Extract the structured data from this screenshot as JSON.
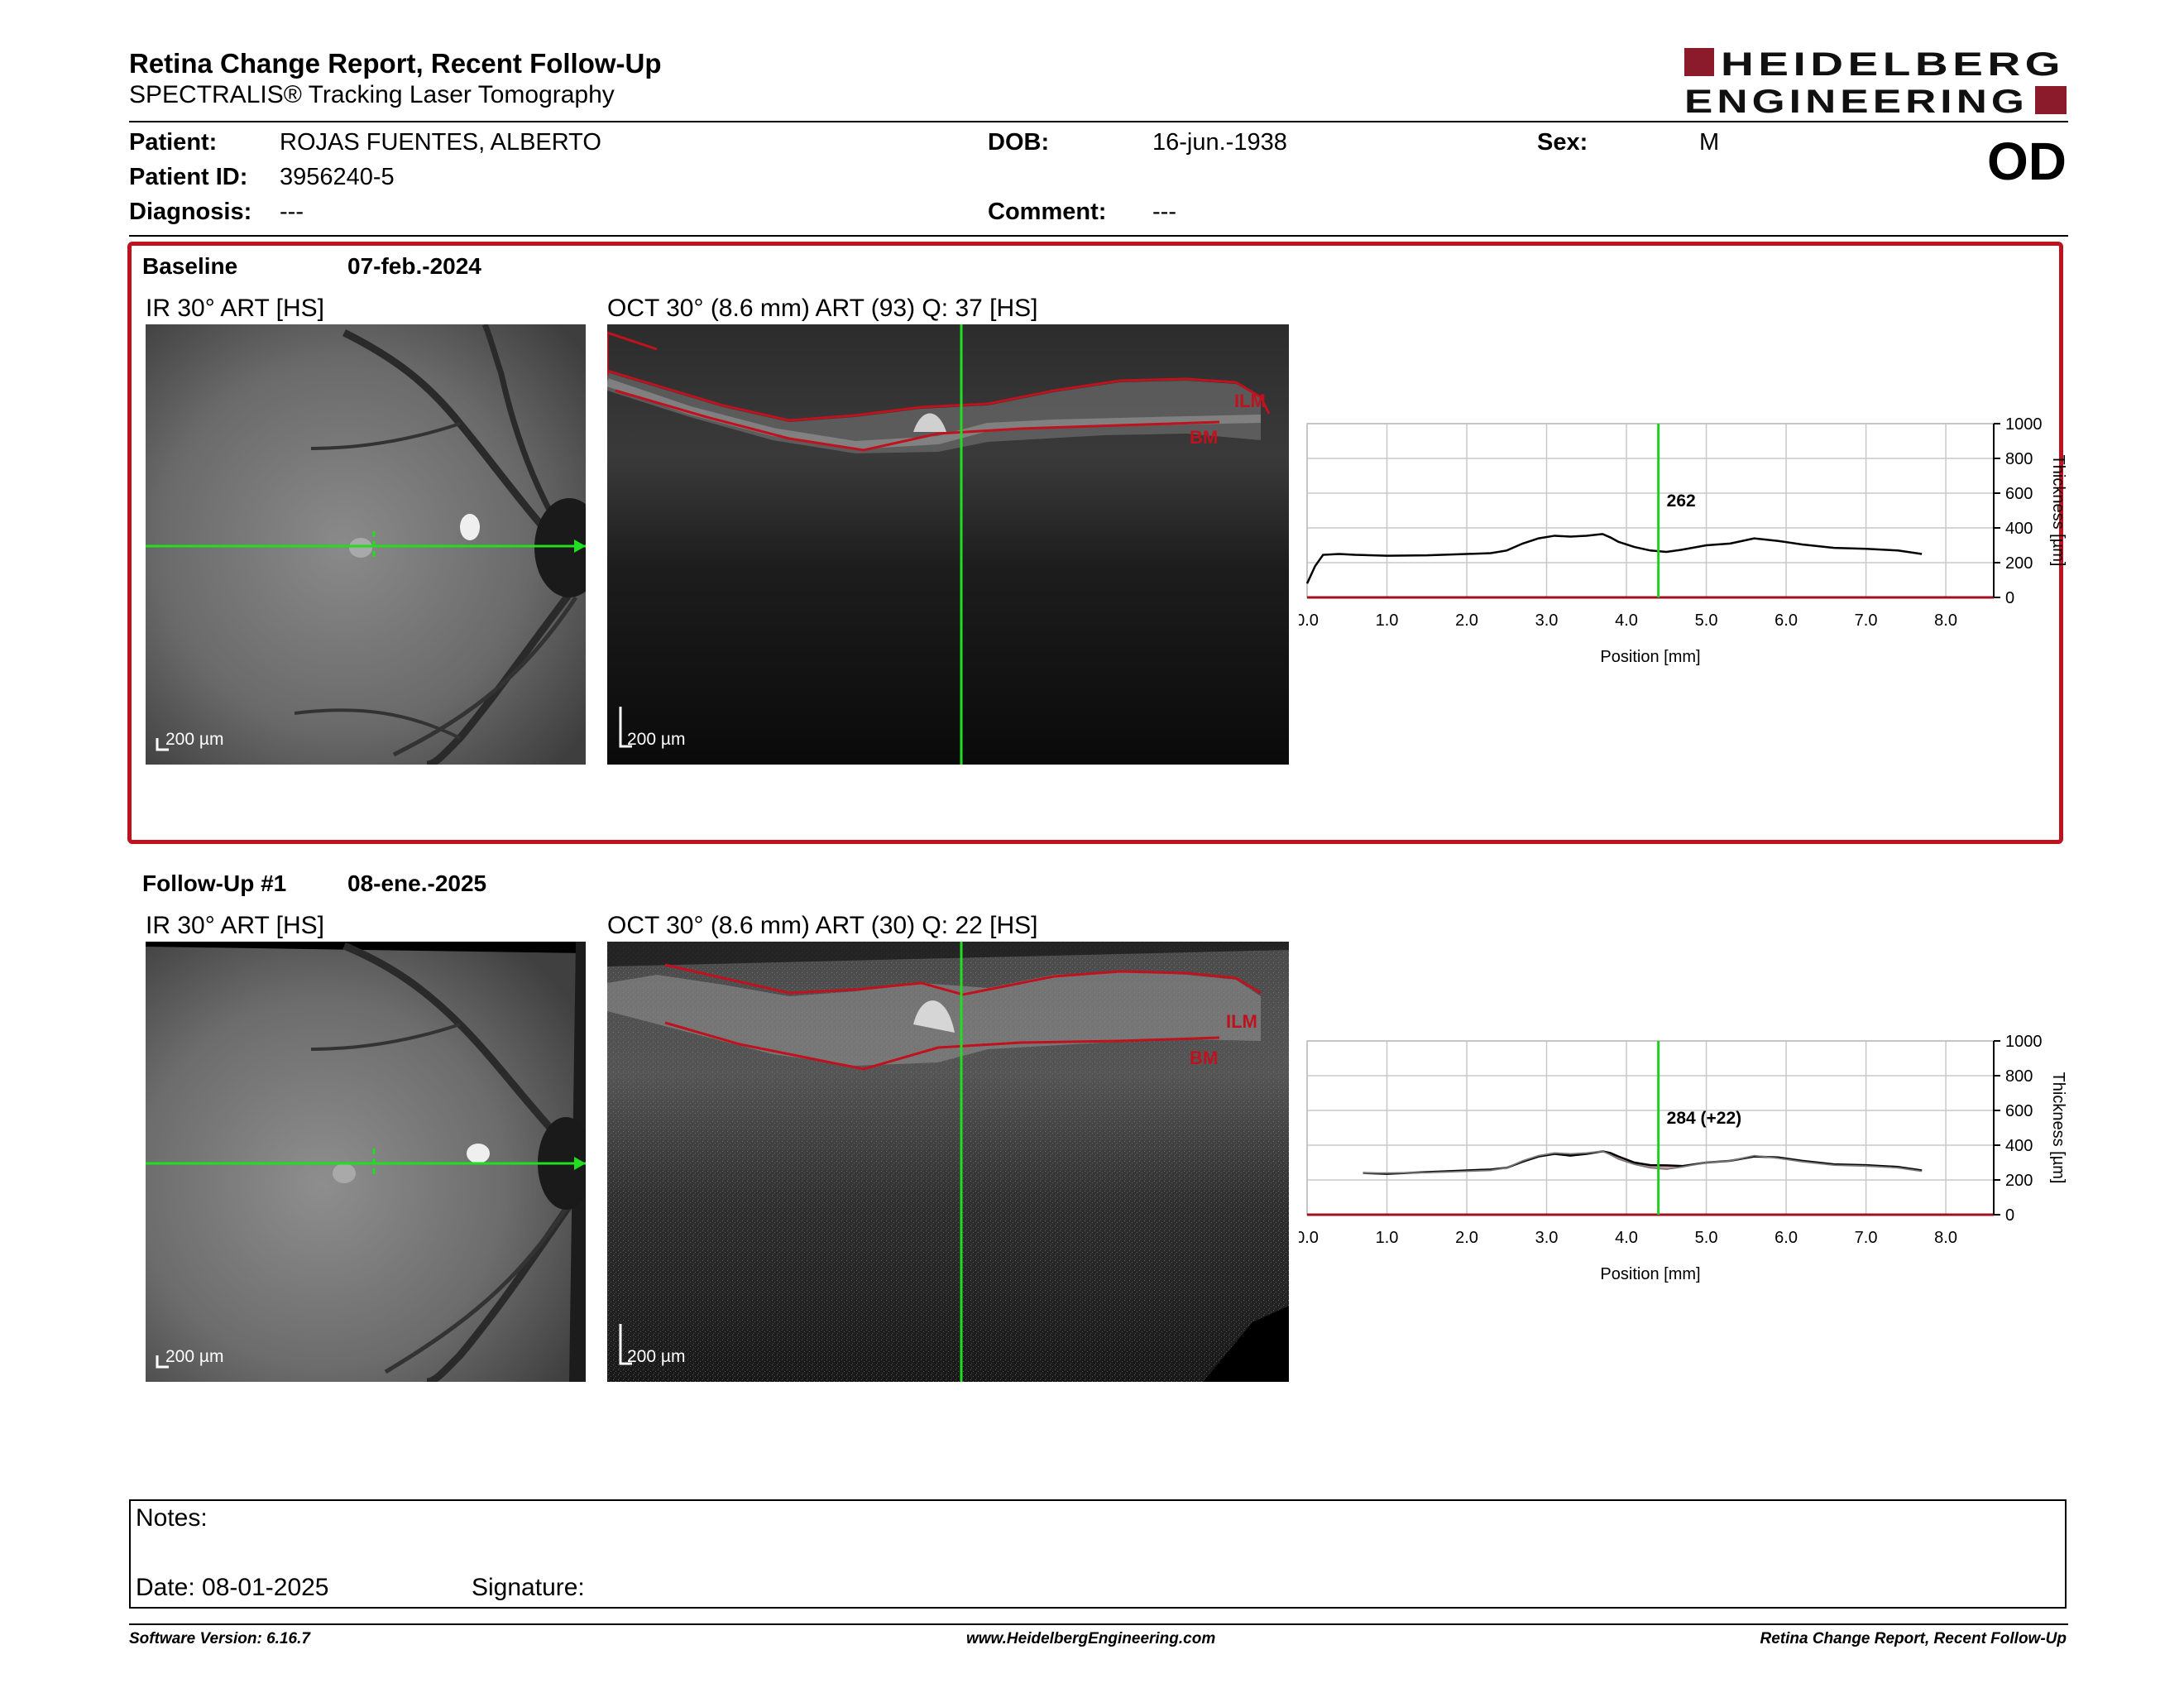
{
  "header": {
    "title": "Retina Change Report, Recent Follow-Up",
    "subtitle": "SPECTRALIS® Tracking Laser Tomography",
    "logo_line1": "HEIDELBERG",
    "logo_line2": "ENGINEERING",
    "brand_color": "#8b1a2b"
  },
  "patient": {
    "patient_label": "Patient:",
    "patient_value": "ROJAS FUENTES, ALBERTO",
    "id_label": "Patient ID:",
    "id_value": "3956240-5",
    "diagnosis_label": "Diagnosis:",
    "diagnosis_value": "---",
    "dob_label": "DOB:",
    "dob_value": "16-jun.-1938",
    "comment_label": "Comment:",
    "comment_value": "---",
    "sex_label": "Sex:",
    "sex_value": "M",
    "eye": "OD"
  },
  "baseline": {
    "label": "Baseline",
    "date": "07-feb.-2024",
    "ir_caption": "IR 30° ART [HS]",
    "oct_caption": "OCT 30° (8.6 mm) ART (93) Q: 37 [HS]",
    "scale_ir": "200 µm",
    "scale_oct": "200 µm",
    "ilm_label": "ILM",
    "bm_label": "BM",
    "cursor_value": "262"
  },
  "followup": {
    "label": "Follow-Up #1",
    "date": "08-ene.-2025",
    "ir_caption": "IR 30° ART [HS]",
    "oct_caption": "OCT 30° (8.6 mm) ART (30) Q: 22 [HS]",
    "scale_ir": "200 µm",
    "scale_oct": "200 µm",
    "ilm_label": "ILM",
    "bm_label": "BM",
    "cursor_value": "284 (+22)"
  },
  "chart_data": [
    {
      "type": "line",
      "xlabel": "Position [mm]",
      "ylabel": "Thickness [µm]",
      "xlim": [
        0,
        8.6
      ],
      "ylim": [
        0,
        1000
      ],
      "x_ticks": [
        "0.0",
        "1.0",
        "2.0",
        "3.0",
        "4.0",
        "5.0",
        "6.0",
        "7.0",
        "8.0"
      ],
      "y_ticks": [
        "0",
        "200",
        "400",
        "600",
        "800",
        "1000"
      ],
      "grid": true,
      "cursor_x": 4.4,
      "cursor_label": "262",
      "series": [
        {
          "x": [
            0.0,
            0.1,
            0.2,
            0.4,
            0.6,
            1.0,
            1.5,
            2.0,
            2.3,
            2.5,
            2.7,
            2.9,
            3.1,
            3.3,
            3.5,
            3.7,
            3.8,
            3.9,
            4.1,
            4.3,
            4.5,
            4.7,
            5.0,
            5.3,
            5.6,
            5.9,
            6.2,
            6.6,
            7.0,
            7.4,
            7.7
          ],
          "y": [
            80,
            180,
            245,
            250,
            245,
            240,
            242,
            250,
            255,
            270,
            310,
            340,
            355,
            350,
            355,
            365,
            345,
            320,
            290,
            270,
            262,
            275,
            300,
            310,
            340,
            325,
            305,
            285,
            280,
            270,
            250
          ]
        }
      ]
    },
    {
      "type": "line",
      "xlabel": "Position [mm]",
      "ylabel": "Thickness [µm]",
      "xlim": [
        0,
        8.6
      ],
      "ylim": [
        0,
        1000
      ],
      "x_ticks": [
        "0.0",
        "1.0",
        "2.0",
        "3.0",
        "4.0",
        "5.0",
        "6.0",
        "7.0",
        "8.0"
      ],
      "y_ticks": [
        "0",
        "200",
        "400",
        "600",
        "800",
        "1000"
      ],
      "grid": true,
      "cursor_x": 4.4,
      "cursor_label": "284 (+22)",
      "series": [
        {
          "x": [
            0.7,
            1.0,
            1.5,
            2.0,
            2.3,
            2.5,
            2.7,
            2.9,
            3.1,
            3.3,
            3.5,
            3.7,
            3.8,
            3.9,
            4.1,
            4.3,
            4.5,
            4.7,
            5.0,
            5.3,
            5.6,
            5.9,
            6.2,
            6.6,
            7.0,
            7.4,
            7.7
          ],
          "y": [
            240,
            235,
            245,
            255,
            260,
            270,
            305,
            335,
            350,
            340,
            350,
            365,
            355,
            335,
            300,
            285,
            284,
            280,
            300,
            310,
            335,
            330,
            310,
            290,
            285,
            275,
            255
          ]
        },
        {
          "x": [
            0.7,
            1.0,
            1.5,
            2.0,
            2.3,
            2.5,
            2.7,
            2.9,
            3.1,
            3.3,
            3.5,
            3.7,
            3.8,
            3.9,
            4.1,
            4.3,
            4.5,
            4.7,
            5.0,
            5.3,
            5.6,
            5.9,
            6.2,
            6.6,
            7.0,
            7.4,
            7.7
          ],
          "y": [
            240,
            240,
            242,
            250,
            255,
            270,
            310,
            340,
            355,
            350,
            355,
            365,
            345,
            320,
            290,
            270,
            262,
            275,
            300,
            310,
            340,
            325,
            305,
            285,
            280,
            270,
            250
          ]
        }
      ]
    }
  ],
  "notes": {
    "notes_label": "Notes:",
    "date_label": "Date: 08-01-2025",
    "signature_label": "Signature:"
  },
  "footer": {
    "software": "Software Version: 6.16.7",
    "website": "www.HeidelbergEngineering.com",
    "report_name": "Retina Change Report, Recent Follow-Up"
  }
}
